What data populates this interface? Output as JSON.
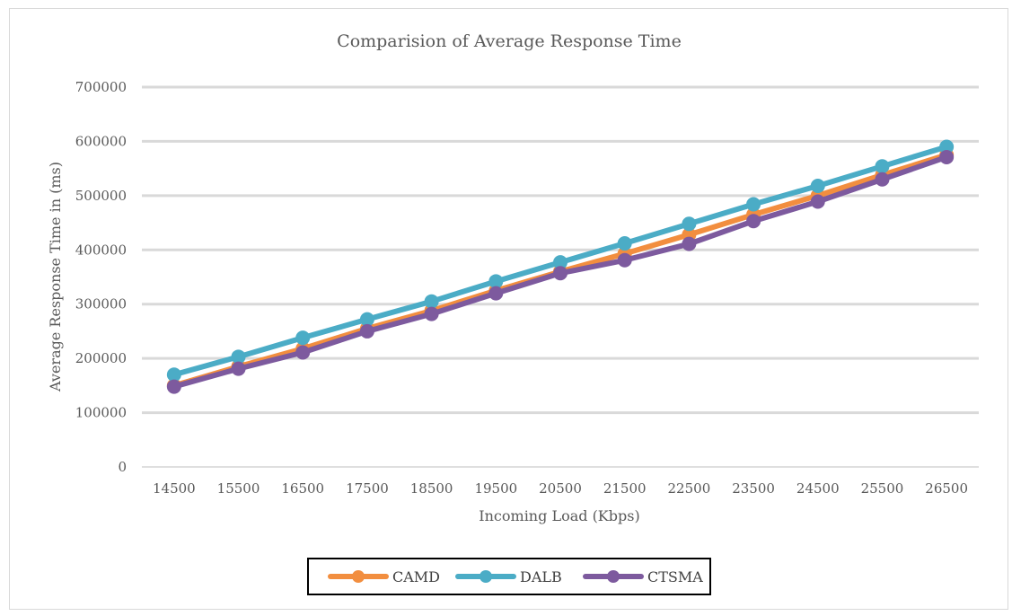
{
  "chart_data": {
    "type": "line",
    "title": "Comparision of Average Response Time",
    "xlabel": "Incoming Load (Kbps)",
    "ylabel": "Average Response Time in (ms)",
    "categories": [
      "14500",
      "15500",
      "16500",
      "17500",
      "18500",
      "19500",
      "20500",
      "21500",
      "22500",
      "23500",
      "24500",
      "25500",
      "26500"
    ],
    "ylim": [
      0,
      700000
    ],
    "yticks": [
      0,
      100000,
      200000,
      300000,
      400000,
      500000,
      600000,
      700000
    ],
    "ytick_labels": [
      "0",
      "100000",
      "200000",
      "300000",
      "400000",
      "500000",
      "600000",
      "700000"
    ],
    "grid": true,
    "legend_position": "bottom",
    "series": [
      {
        "name": "CAMD",
        "color": "#F28E3F",
        "values": [
          150000,
          185000,
          218000,
          255000,
          288000,
          325000,
          360000,
          393000,
          428000,
          465000,
          500000,
          538000,
          575000
        ]
      },
      {
        "name": "DALB",
        "color": "#4BACC6",
        "values": [
          170000,
          203000,
          238000,
          272000,
          305000,
          342000,
          377000,
          412000,
          448000,
          484000,
          518000,
          554000,
          590000
        ]
      },
      {
        "name": "CTSMA",
        "color": "#7D5A9E",
        "values": [
          148000,
          181000,
          211000,
          250000,
          282000,
          320000,
          357000,
          381000,
          411000,
          453000,
          489000,
          530000,
          571000
        ]
      }
    ]
  }
}
